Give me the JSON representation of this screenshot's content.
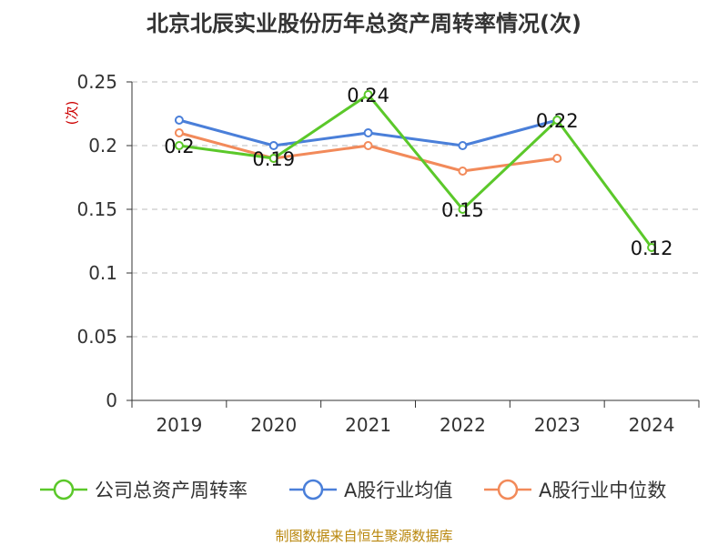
{
  "chart_data": {
    "type": "line",
    "title": "北京北辰实业股份历年总资产周转率情况(次)",
    "ylabel": "(次)",
    "xlabel": "",
    "categories": [
      "2019",
      "2020",
      "2021",
      "2022",
      "2023",
      "2024"
    ],
    "ylim": [
      0,
      0.25
    ],
    "yticks": [
      0,
      0.05,
      0.1,
      0.15,
      0.2,
      0.25
    ],
    "ytick_labels": [
      "0",
      "0.05",
      "0.1",
      "0.15",
      "0.2",
      "0.25"
    ],
    "grid": true,
    "legend_position": "bottom",
    "series": [
      {
        "name": "公司总资产周转率",
        "color": "#5bc82a",
        "values": [
          0.2,
          0.19,
          0.24,
          0.15,
          0.22,
          0.12
        ],
        "data_labels": [
          "0.2",
          "0.19",
          "0.24",
          "0.15",
          "0.22",
          "0.12"
        ]
      },
      {
        "name": "A股行业均值",
        "color": "#4a7fd9",
        "values": [
          0.22,
          0.2,
          0.21,
          0.2,
          0.22,
          null
        ]
      },
      {
        "name": "A股行业中位数",
        "color": "#f28a5a",
        "values": [
          0.21,
          0.19,
          0.2,
          0.18,
          0.19,
          null
        ]
      }
    ]
  },
  "source_text": "制图数据来自恒生聚源数据库",
  "colors": {
    "title": "#333333",
    "axis_text": "#333333",
    "ylabel": "#cc0000",
    "source": "#b8860b",
    "grid": "#bbbbbb",
    "axis": "#333333"
  }
}
